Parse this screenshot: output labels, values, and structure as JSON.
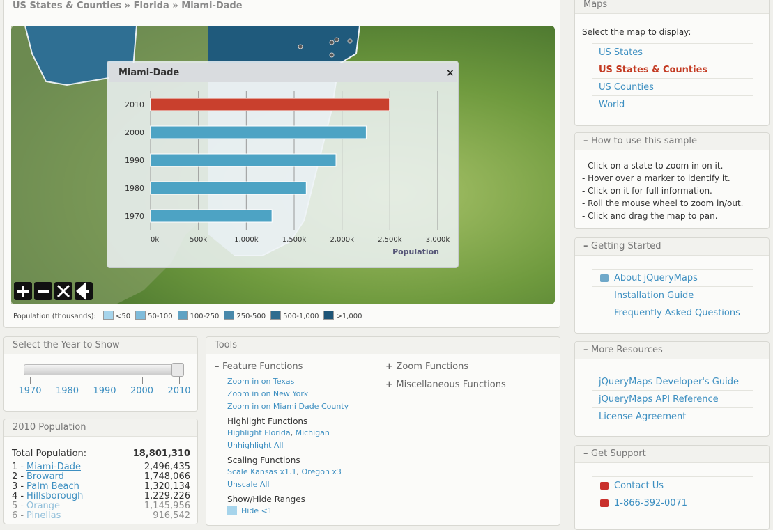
{
  "breadcrumb": "US States & Counties » Florida » Miami-Dade",
  "popup": {
    "title": "Miami-Dade"
  },
  "chart_data": {
    "type": "hbar",
    "categories": [
      "2010",
      "2000",
      "1990",
      "1980",
      "1970"
    ],
    "values": [
      2496,
      2253,
      1937,
      1626,
      1268
    ],
    "colors": [
      "#c9402d",
      "#4da3c4",
      "#4da3c4",
      "#4da3c4",
      "#4da3c4"
    ],
    "xlim": [
      0,
      3000
    ],
    "xticks": [
      {
        "value": 0,
        "label": "0k"
      },
      {
        "value": 500,
        "label": "500k"
      },
      {
        "value": 1000,
        "label": "1,000k"
      },
      {
        "value": 1500,
        "label": "1,500k"
      },
      {
        "value": 2000,
        "label": "2,000k"
      },
      {
        "value": 2500,
        "label": "2,500k"
      },
      {
        "value": 3000,
        "label": "3,000k"
      }
    ],
    "x_label": "Population",
    "grid": true
  },
  "map_legend": {
    "label": "Population (thousands):",
    "items": [
      {
        "label": "<50",
        "color": "#a6d4eb"
      },
      {
        "label": "50-100",
        "color": "#7fbcdb"
      },
      {
        "label": "100-250",
        "color": "#60a2c3"
      },
      {
        "label": "250-500",
        "color": "#4888aa"
      },
      {
        "label": "500-1,000",
        "color": "#2f6c8f"
      },
      {
        "label": ">1,000",
        "color": "#1d5476"
      }
    ]
  },
  "year_panel": {
    "title": "Select the Year to Show",
    "years": [
      "1970",
      "1980",
      "1990",
      "2000",
      "2010"
    ]
  },
  "population": {
    "title": "2010 Population",
    "total_label": "Total Population:",
    "total": "18,801,310",
    "rows": [
      {
        "rank": "1 -",
        "name": "Miami-Dade",
        "value": "2,496,435"
      },
      {
        "rank": "2 -",
        "name": "Broward",
        "value": "1,748,066"
      },
      {
        "rank": "3 -",
        "name": "Palm Beach",
        "value": "1,320,134"
      },
      {
        "rank": "4 -",
        "name": "Hillsborough",
        "value": "1,229,226"
      },
      {
        "rank": "5 -",
        "name": "Orange",
        "value": "1,145,956"
      },
      {
        "rank": "6 -",
        "name": "Pinellas",
        "value": "916,542"
      }
    ]
  },
  "tools": {
    "title": "Tools",
    "feature": {
      "title": "Feature Functions",
      "links": [
        "Zoom in on Texas",
        "Zoom in on New York",
        "Zoom in on Miami Dade County"
      ]
    },
    "highlight": {
      "title": "Highlight Functions",
      "links": [
        "Highlight Florida",
        "Michigan"
      ],
      "separator": ",",
      "extra": "Unhighlight All"
    },
    "scaling": {
      "title": "Scaling Functions",
      "links": [
        "Scale Kansas x1.1",
        "Oregon x3"
      ],
      "separator": ",",
      "extra": "Unscale All"
    },
    "ranges": {
      "title": "Show/Hide Ranges",
      "link": "Hide <1"
    },
    "collapsed": [
      "Zoom Functions",
      "Miscellaneous Functions"
    ]
  },
  "maps": {
    "title": "Maps",
    "intro": "Select the map to display:",
    "items": [
      "US States",
      "US States & Counties",
      "US Counties",
      "World"
    ],
    "active": 1
  },
  "how_to": {
    "title": "How to use this sample",
    "lines": [
      "- Click on a state to zoom in on it.",
      "- Hover over a marker to identify it.",
      "- Click on it for full information.",
      "- Roll the mouse wheel to zoom in/out.",
      "- Click and drag the map to pan."
    ]
  },
  "getting_started": {
    "title": "Getting Started",
    "links": [
      "About jQueryMaps",
      "Installation Guide",
      "Frequently Asked Questions"
    ]
  },
  "more_resources": {
    "title": "More Resources",
    "links": [
      "jQueryMaps Developer's Guide",
      "jQueryMaps API Reference",
      "License Agreement"
    ]
  },
  "support": {
    "title": "Get Support",
    "links": [
      "Contact Us",
      "1-866-392-0071"
    ]
  }
}
